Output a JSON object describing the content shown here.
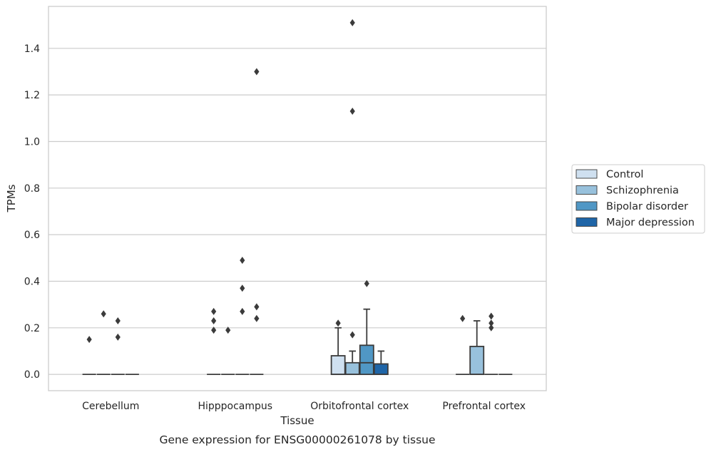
{
  "caption": "Gene expression for ENSG00000261078 by tissue",
  "chart_data": {
    "type": "box",
    "xlabel": "Tissue",
    "ylabel": "TPMs",
    "categories": [
      "Cerebellum",
      "Hipppocampus",
      "Orbitofrontal cortex",
      "Prefrontal cortex"
    ],
    "ylim": [
      -0.07,
      1.58
    ],
    "yticks": [
      0.0,
      0.2,
      0.4,
      0.6,
      0.8,
      1.0,
      1.2,
      1.4
    ],
    "ytick_labels": [
      "0.0",
      "0.2",
      "0.4",
      "0.6",
      "0.8",
      "1.0",
      "1.2",
      "1.4"
    ],
    "grid": "horizontal",
    "legend_position": "right",
    "series": [
      {
        "name": "Control",
        "color": "#cfe0f0",
        "boxes": [
          {
            "q1": 0,
            "median": 0,
            "q3": 0,
            "whislo": 0,
            "whishi": 0,
            "fliers": [
              0.15
            ]
          },
          {
            "q1": 0,
            "median": 0,
            "q3": 0,
            "whislo": 0,
            "whishi": 0,
            "fliers": [
              0.19,
              0.23,
              0.27
            ]
          },
          {
            "q1": 0,
            "median": 0,
            "q3": 0.08,
            "whislo": 0,
            "whishi": 0.2,
            "fliers": [
              0.22
            ]
          },
          {
            "q1": 0,
            "median": 0,
            "q3": 0,
            "whislo": 0,
            "whishi": 0,
            "fliers": [
              0.24
            ]
          }
        ]
      },
      {
        "name": "Schizophrenia",
        "color": "#98c1dc",
        "boxes": [
          {
            "q1": 0,
            "median": 0,
            "q3": 0,
            "whislo": 0,
            "whishi": 0,
            "fliers": [
              0.26
            ]
          },
          {
            "q1": 0,
            "median": 0,
            "q3": 0,
            "whislo": 0,
            "whishi": 0,
            "fliers": [
              0.19
            ]
          },
          {
            "q1": 0,
            "median": 0,
            "q3": 0.05,
            "whislo": 0,
            "whishi": 0.1,
            "fliers": [
              0.17,
              1.13,
              1.51
            ]
          },
          {
            "q1": 0,
            "median": 0,
            "q3": 0.12,
            "whislo": 0,
            "whishi": 0.23,
            "fliers": []
          }
        ]
      },
      {
        "name": "Bipolar disorder",
        "color": "#5097c5",
        "boxes": [
          {
            "q1": 0,
            "median": 0,
            "q3": 0,
            "whislo": 0,
            "whishi": 0,
            "fliers": [
              0.16,
              0.23
            ]
          },
          {
            "q1": 0,
            "median": 0,
            "q3": 0,
            "whislo": 0,
            "whishi": 0,
            "fliers": [
              0.27,
              0.37,
              0.49
            ]
          },
          {
            "q1": 0,
            "median": 0.05,
            "q3": 0.125,
            "whislo": 0,
            "whishi": 0.28,
            "fliers": [
              0.39
            ]
          },
          {
            "q1": 0,
            "median": 0,
            "q3": 0,
            "whislo": 0,
            "whishi": 0,
            "fliers": [
              0.2,
              0.22,
              0.25
            ]
          }
        ]
      },
      {
        "name": "Major depression",
        "color": "#1f65a7",
        "boxes": [
          {
            "q1": 0,
            "median": 0,
            "q3": 0,
            "whislo": 0,
            "whishi": 0,
            "fliers": []
          },
          {
            "q1": 0,
            "median": 0,
            "q3": 0,
            "whislo": 0,
            "whishi": 0,
            "fliers": [
              0.24,
              0.29,
              1.3
            ]
          },
          {
            "q1": 0,
            "median": 0,
            "q3": 0.045,
            "whislo": 0,
            "whishi": 0.1,
            "fliers": []
          },
          {
            "q1": 0,
            "median": 0,
            "q3": 0,
            "whislo": 0,
            "whishi": 0,
            "fliers": []
          }
        ]
      }
    ]
  }
}
